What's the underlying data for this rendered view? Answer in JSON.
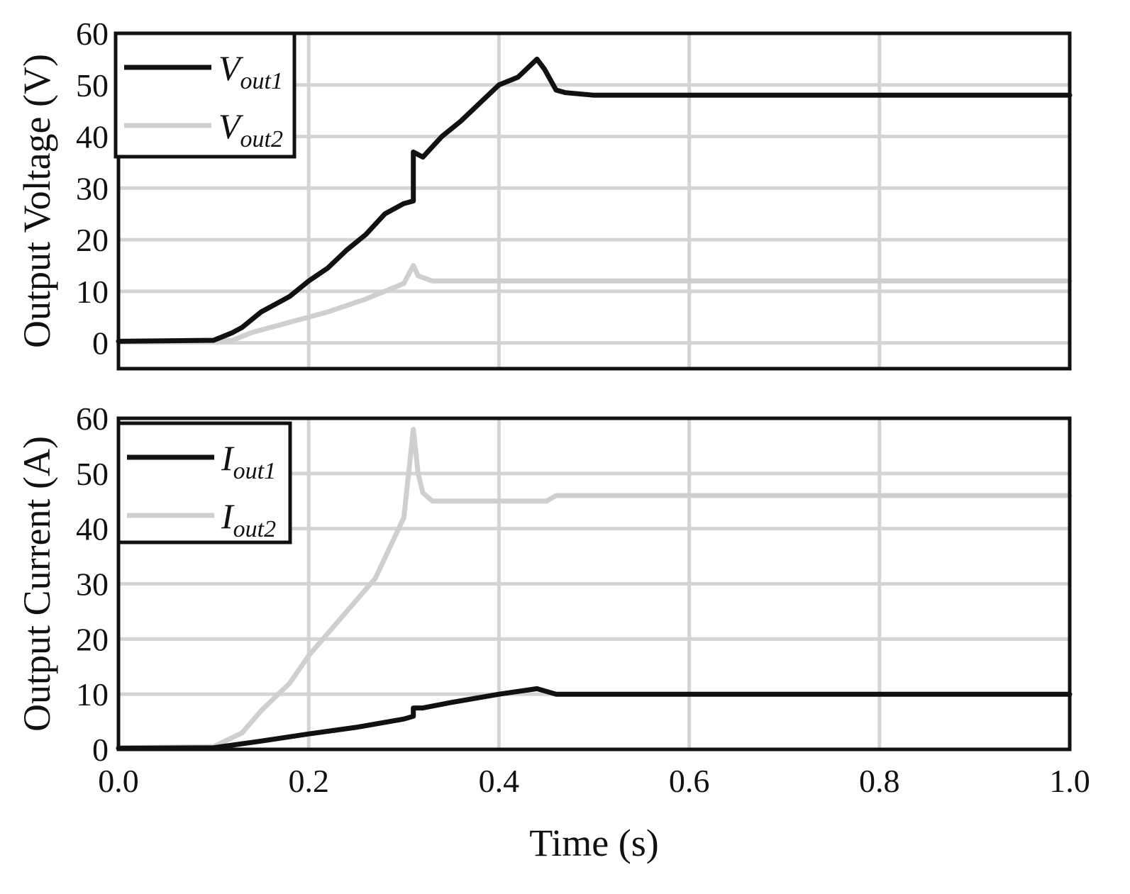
{
  "chart_data": [
    {
      "type": "line",
      "ylabel": "Output Voltage (V)",
      "xlim": [
        0.0,
        1.0
      ],
      "ylim": [
        -5,
        60
      ],
      "yticks": [
        0,
        10,
        20,
        30,
        40,
        50,
        60
      ],
      "xticks": [
        0.0,
        0.2,
        0.4,
        0.6,
        0.8,
        1.0
      ],
      "xtick_labels": [
        "",
        "",
        "",
        "",
        "",
        ""
      ],
      "grid": true,
      "legend_position": "top-left",
      "series": [
        {
          "name": "V",
          "subscript": "out1",
          "color": "#111111",
          "x": [
            0.0,
            0.1,
            0.12,
            0.13,
            0.15,
            0.17,
            0.18,
            0.2,
            0.22,
            0.24,
            0.26,
            0.28,
            0.3,
            0.31,
            0.31,
            0.315,
            0.32,
            0.34,
            0.36,
            0.38,
            0.4,
            0.42,
            0.44,
            0.448,
            0.46,
            0.47,
            0.5,
            1.0
          ],
          "y": [
            0.3,
            0.5,
            2.0,
            3.0,
            6.0,
            8.0,
            9.0,
            12.0,
            14.5,
            18.0,
            21.0,
            25.0,
            27.0,
            27.5,
            37.0,
            36.5,
            36.0,
            40.0,
            43.0,
            46.5,
            50.0,
            51.5,
            55.0,
            53.0,
            49.0,
            48.5,
            48.0,
            48.0
          ]
        },
        {
          "name": "V",
          "subscript": "out2",
          "color": "#cfcfcf",
          "x": [
            0.0,
            0.12,
            0.14,
            0.18,
            0.22,
            0.26,
            0.3,
            0.31,
            0.315,
            0.33,
            0.4,
            0.5,
            1.0
          ],
          "y": [
            0.2,
            0.5,
            2.0,
            4.0,
            6.0,
            8.5,
            11.5,
            15.0,
            13.0,
            12.0,
            12.0,
            12.0,
            12.0
          ]
        }
      ]
    },
    {
      "type": "line",
      "ylabel": "Output Current (A)",
      "xlabel": "Time (s)",
      "xlim": [
        0.0,
        1.0
      ],
      "ylim": [
        0,
        60
      ],
      "yticks": [
        0,
        10,
        20,
        30,
        40,
        50,
        60
      ],
      "xticks": [
        0.0,
        0.2,
        0.4,
        0.6,
        0.8,
        1.0
      ],
      "xtick_labels": [
        "0.0",
        "0.2",
        "0.4",
        "0.6",
        "0.8",
        "1.0"
      ],
      "grid": true,
      "legend_position": "top-left",
      "series": [
        {
          "name": "I",
          "subscript": "out1",
          "color": "#111111",
          "x": [
            0.0,
            0.1,
            0.15,
            0.2,
            0.25,
            0.3,
            0.31,
            0.31,
            0.32,
            0.35,
            0.4,
            0.44,
            0.45,
            0.46,
            0.5,
            1.0
          ],
          "y": [
            0.2,
            0.3,
            1.5,
            2.8,
            4.0,
            5.5,
            6.0,
            7.5,
            7.5,
            8.5,
            10.0,
            11.0,
            10.5,
            10.0,
            10.0,
            10.0
          ]
        },
        {
          "name": "I",
          "subscript": "out2",
          "color": "#cfcfcf",
          "x": [
            0.0,
            0.1,
            0.13,
            0.15,
            0.18,
            0.2,
            0.24,
            0.27,
            0.3,
            0.31,
            0.315,
            0.32,
            0.33,
            0.4,
            0.45,
            0.46,
            0.5,
            1.0
          ],
          "y": [
            0.3,
            0.5,
            3.0,
            7.0,
            12.0,
            17.0,
            25.0,
            31.0,
            42.0,
            58.0,
            50.0,
            46.5,
            45.0,
            45.0,
            45.0,
            46.0,
            46.0,
            46.0
          ]
        }
      ]
    }
  ]
}
